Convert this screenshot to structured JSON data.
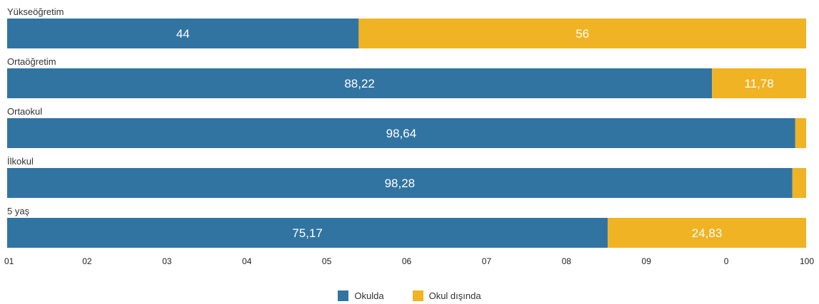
{
  "chart_data": {
    "type": "bar",
    "orientation": "horizontal",
    "stacked": true,
    "categories": [
      "Yükseöğretim",
      "Ortaöğretim",
      "Ortaokul",
      "İlkokul",
      "5 yaş"
    ],
    "series": [
      {
        "name": "Okulda",
        "color": "#3274a1",
        "values": [
          44,
          88.22,
          98.64,
          98.28,
          75.17
        ],
        "labels": [
          "44",
          "88,22",
          "98,64",
          "98,28",
          "75,17"
        ]
      },
      {
        "name": "Okul dışında",
        "color": "#f0b323",
        "values": [
          56,
          11.78,
          1.36,
          1.72,
          24.83
        ],
        "labels": [
          "56",
          "11,78",
          "",
          "",
          "24,83"
        ]
      }
    ],
    "x_ticks": [
      "01",
      "02",
      "03",
      "04",
      "05",
      "06",
      "07",
      "08",
      "09",
      "0",
      "100"
    ],
    "xlim": [
      0,
      100
    ],
    "grid": false,
    "legend_position": "bottom-center"
  }
}
